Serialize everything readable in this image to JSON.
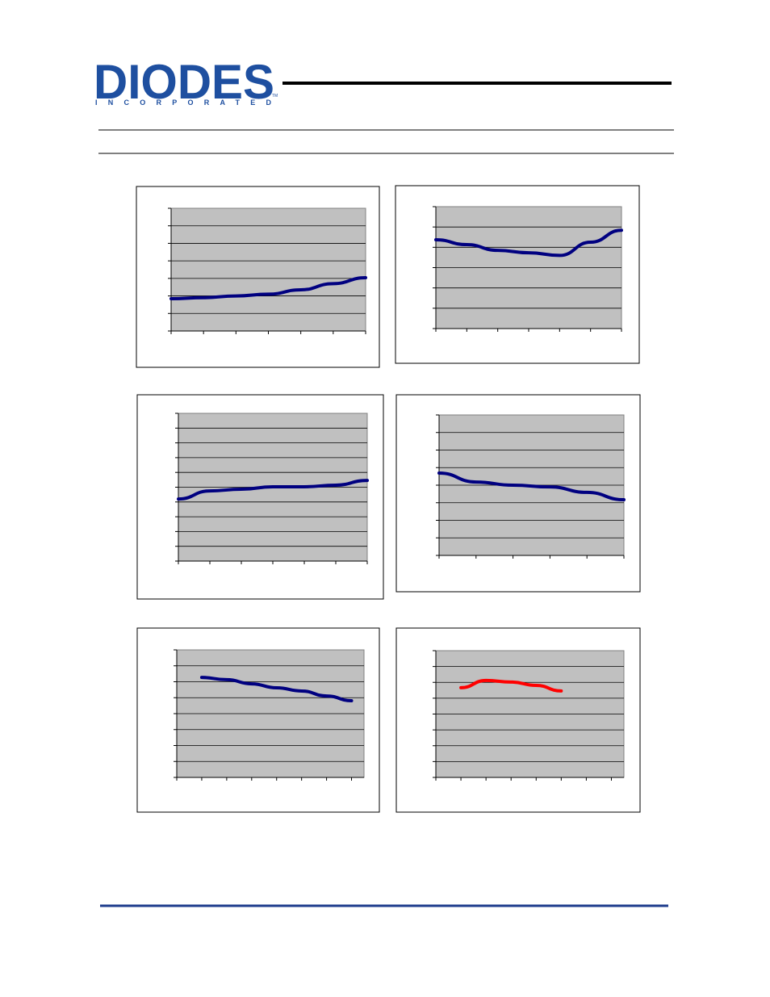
{
  "header": {
    "logo": "DIODES",
    "logo_sub": "INCORPORATED",
    "logo_mark": "TM"
  },
  "chart_data": [
    {
      "type": "line",
      "x": [
        0,
        1,
        2,
        3,
        4,
        5,
        6
      ],
      "xlim": [
        0,
        6
      ],
      "ylim": [
        0,
        7
      ],
      "grid": true,
      "series": [
        {
          "color": "#000080",
          "values": [
            1.84,
            1.9,
            2.0,
            2.1,
            2.35,
            2.7,
            3.04
          ]
        }
      ]
    },
    {
      "type": "line",
      "x": [
        0,
        1,
        2,
        3,
        4,
        5,
        6
      ],
      "xlim": [
        0,
        6
      ],
      "ylim": [
        0,
        6
      ],
      "grid": true,
      "series": [
        {
          "color": "#000080",
          "values": [
            4.37,
            4.13,
            3.85,
            3.73,
            3.6,
            4.25,
            4.84
          ]
        }
      ]
    },
    {
      "type": "line",
      "x": [
        0,
        1,
        2,
        3,
        4,
        5,
        6
      ],
      "xlim": [
        0,
        6
      ],
      "ylim": [
        0,
        10
      ],
      "grid": true,
      "series": [
        {
          "color": "#000080",
          "values": [
            4.2,
            4.75,
            4.86,
            5.03,
            5.03,
            5.14,
            5.46
          ]
        }
      ]
    },
    {
      "type": "line",
      "x": [
        0,
        1,
        2,
        3,
        4,
        5
      ],
      "xlim": [
        0,
        5
      ],
      "ylim": [
        0,
        8
      ],
      "grid": true,
      "series": [
        {
          "color": "#000080",
          "values": [
            4.69,
            4.18,
            4.0,
            3.9,
            3.59,
            3.17
          ]
        }
      ]
    },
    {
      "type": "line",
      "x": [
        1,
        2,
        3,
        4,
        5,
        6,
        7
      ],
      "xlim": [
        0,
        7.5
      ],
      "ylim": [
        0,
        8
      ],
      "grid": true,
      "series": [
        {
          "color": "#000080",
          "values": [
            6.27,
            6.13,
            5.87,
            5.62,
            5.42,
            5.11,
            4.81
          ]
        }
      ]
    },
    {
      "type": "line",
      "x": [
        1,
        2,
        3,
        4,
        5
      ],
      "xlim": [
        0,
        7.5
      ],
      "ylim": [
        0,
        8
      ],
      "grid": true,
      "series": [
        {
          "color": "#ff0000",
          "values": [
            5.66,
            6.12,
            6.02,
            5.81,
            5.46
          ]
        }
      ]
    }
  ]
}
